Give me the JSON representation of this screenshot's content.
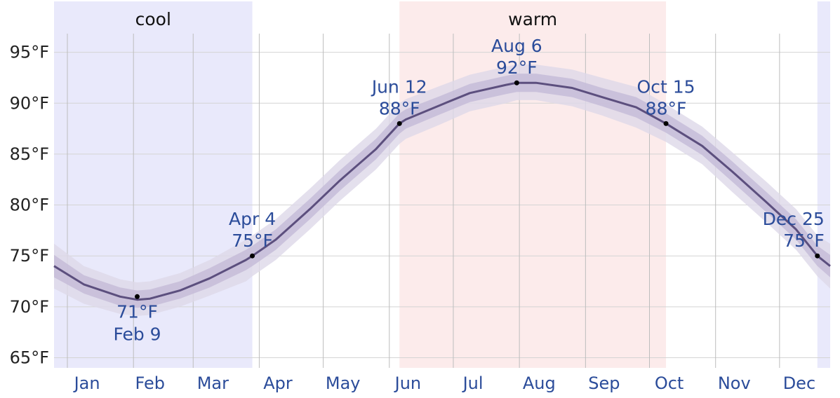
{
  "chart_data": {
    "type": "area",
    "y_unit": "°F",
    "ylim": [
      64,
      100
    ],
    "yticks": [
      "65°F",
      "70°F",
      "75°F",
      "80°F",
      "85°F",
      "90°F",
      "95°F"
    ],
    "ytick_values": [
      65,
      70,
      75,
      80,
      85,
      90,
      95
    ],
    "month_labels": [
      "Jan",
      "Feb",
      "Mar",
      "Apr",
      "May",
      "Jun",
      "Jul",
      "Aug",
      "Sep",
      "Oct",
      "Nov",
      "Dec"
    ],
    "grid": true,
    "x": [
      "Jan 1",
      "Jan 15",
      "Feb 1",
      "Feb 9",
      "Feb 15",
      "Mar 1",
      "Mar 15",
      "Apr 1",
      "Apr 4",
      "Apr 15",
      "May 1",
      "May 15",
      "Jun 1",
      "Jun 12",
      "Jun 15",
      "Jul 1",
      "Jul 15",
      "Aug 1",
      "Aug 6",
      "Aug 15",
      "Sep 1",
      "Sep 15",
      "Oct 1",
      "Oct 15",
      "Nov 1",
      "Nov 15",
      "Dec 1",
      "Dec 15",
      "Dec 25",
      "Dec 31"
    ],
    "series": [
      {
        "values": [
          74.0,
          72.2,
          71.0,
          70.7,
          70.8,
          71.6,
          72.8,
          74.6,
          75.0,
          76.6,
          79.6,
          82.4,
          85.5,
          88.0,
          88.4,
          89.8,
          91.0,
          91.8,
          92.0,
          92.0,
          91.5,
          90.6,
          89.6,
          88.0,
          85.8,
          83.3,
          80.3,
          77.6,
          75.0,
          74.0
        ],
        "band_inner_low": [
          72.9,
          71.3,
          70.1,
          69.9,
          70.0,
          70.8,
          71.9,
          73.6,
          74.0,
          75.6,
          78.6,
          81.4,
          84.5,
          87.0,
          87.5,
          88.9,
          90.1,
          90.9,
          91.1,
          91.1,
          90.6,
          89.7,
          88.6,
          87.1,
          84.9,
          82.3,
          79.3,
          76.6,
          74.0,
          72.9
        ],
        "band_inner_high": [
          75.1,
          73.1,
          71.9,
          71.6,
          71.7,
          72.5,
          73.8,
          75.6,
          76.0,
          77.6,
          80.6,
          83.4,
          86.5,
          89.0,
          89.4,
          90.7,
          91.9,
          92.7,
          92.9,
          92.9,
          92.4,
          91.5,
          90.6,
          89.0,
          86.8,
          84.3,
          81.3,
          78.6,
          76.0,
          75.1
        ],
        "band_outer_low": [
          71.8,
          70.3,
          69.3,
          69.1,
          69.2,
          70.0,
          71.1,
          72.5,
          73.0,
          74.6,
          77.6,
          80.4,
          83.5,
          86.0,
          86.5,
          87.9,
          89.2,
          90.0,
          90.3,
          90.3,
          89.7,
          88.8,
          87.6,
          86.2,
          84.0,
          81.3,
          78.3,
          75.6,
          73.0,
          71.8
        ],
        "band_outer_high": [
          76.2,
          74.0,
          72.7,
          72.4,
          72.5,
          73.3,
          74.6,
          76.6,
          77.0,
          78.6,
          81.6,
          84.4,
          87.5,
          90.0,
          90.4,
          91.7,
          92.8,
          93.6,
          93.8,
          93.8,
          93.3,
          92.5,
          91.6,
          89.9,
          87.7,
          85.2,
          82.3,
          79.6,
          77.0,
          76.2
        ]
      }
    ],
    "seasons": [
      {
        "label": "cool",
        "start": "Jan 1",
        "end": "Apr 4",
        "color": "#e9e9fb"
      },
      {
        "label": "warm",
        "start": "Jun 12",
        "end": "Oct 15",
        "color": "#fcebeb"
      },
      {
        "label": "",
        "start": "Dec 25",
        "end": "Dec 31",
        "color": "#e9e9fb"
      }
    ],
    "annotations": [
      {
        "date": "Feb 9",
        "value": 71,
        "label_value": "71°F",
        "label_date": "Feb 9",
        "placement": "below"
      },
      {
        "date": "Apr 4",
        "value": 75,
        "label_value": "75°F",
        "label_date": "Apr 4",
        "placement": "above"
      },
      {
        "date": "Jun 12",
        "value": 88,
        "label_value": "88°F",
        "label_date": "Jun 12",
        "placement": "above"
      },
      {
        "date": "Aug 6",
        "value": 92,
        "label_value": "92°F",
        "label_date": "Aug 6",
        "placement": "above"
      },
      {
        "date": "Oct 15",
        "value": 88,
        "label_value": "88°F",
        "label_date": "Oct 15",
        "placement": "above"
      },
      {
        "date": "Dec 25",
        "value": 75,
        "label_value": "75°F",
        "label_date": "Dec 25",
        "placement": "above"
      }
    ],
    "colors": {
      "line": "#5c4f7e",
      "band_outer": "#ddd8e8",
      "band_inner": "#c6bcd8",
      "grid": "#d4d4d4",
      "label": "#2b4c9a",
      "marker": "#000000"
    }
  }
}
